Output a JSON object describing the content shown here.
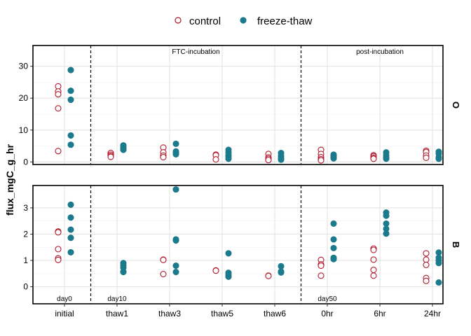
{
  "chart_data": {
    "type": "scatter",
    "ylabel": "flux_mgC_g_hr",
    "xlabel": "",
    "categories": [
      "initial",
      "thaw1",
      "thaw3",
      "thaw5",
      "thaw6",
      "0hr",
      "6hr",
      "24hr"
    ],
    "legend": {
      "position": "top",
      "entries": [
        {
          "name": "control",
          "marker": "open-circle",
          "color": "#B2182B"
        },
        {
          "name": "freeze-thaw",
          "marker": "filled-circle",
          "color": "#1B7A8C"
        }
      ]
    },
    "grid": true,
    "vlines_after": [
      "initial",
      "thaw6"
    ],
    "panels": [
      {
        "strip": "O",
        "ylim": [
          -0.8,
          36.5
        ],
        "yticks": [
          0,
          10,
          20,
          30
        ],
        "annotations": [
          {
            "text": "FTC-incubation",
            "x_between": [
              "thaw3",
              "thaw5"
            ],
            "position": "top"
          },
          {
            "text": "post-incubation",
            "x_between": [
              "0hr",
              "6hr",
              "24hr"
            ],
            "position": "top"
          }
        ],
        "series": [
          {
            "name": "control",
            "points": {
              "initial": [
                23.7,
                22.1,
                21.2,
                16.8,
                3.4
              ],
              "thaw1": [
                2.8,
                2.3,
                1.9,
                1.6
              ],
              "thaw3": [
                4.5,
                3.0,
                2.0,
                1.5
              ],
              "thaw5": [
                2.3,
                2.1,
                0.8
              ],
              "thaw6": [
                2.5,
                1.4,
                1.0,
                0.6
              ],
              "0hr": [
                3.8,
                2.5,
                1.5,
                0.9,
                0.5
              ],
              "6hr": [
                2.1,
                1.8,
                1.3,
                1.0
              ],
              "24hr": [
                3.5,
                3.1,
                2.0,
                1.3
              ]
            }
          },
          {
            "name": "freeze-thaw",
            "points": {
              "initial": [
                28.8,
                22.3,
                19.5,
                8.3,
                5.4
              ],
              "thaw1": [
                5.2,
                4.6,
                4.0,
                3.8
              ],
              "thaw3": [
                5.7,
                3.3,
                2.8,
                2.4
              ],
              "thaw5": [
                3.8,
                3.0,
                2.2,
                1.6,
                1.0
              ],
              "thaw6": [
                2.8,
                1.9,
                1.2,
                0.7
              ],
              "0hr": [
                2.3,
                1.8,
                1.4,
                1.1
              ],
              "6hr": [
                3.0,
                2.1,
                1.4,
                1.0
              ],
              "24hr": [
                3.2,
                2.6,
                1.5,
                1.0
              ]
            }
          }
        ]
      },
      {
        "strip": "B",
        "ylim": [
          -0.65,
          3.85
        ],
        "yticks": [
          0,
          1,
          2,
          3
        ],
        "annotations": [
          {
            "text": "day0",
            "x_between": [
              "initial"
            ],
            "position": "bottom"
          },
          {
            "text": "day10",
            "x_between": [
              "thaw1"
            ],
            "position": "bottom"
          },
          {
            "text": "day50",
            "x_between": [
              "0hr"
            ],
            "position": "bottom"
          }
        ],
        "series": [
          {
            "name": "control",
            "points": {
              "initial": [
                2.1,
                2.07,
                1.43,
                1.08,
                1.02
              ],
              "thaw1": [],
              "thaw3": [
                1.03,
                1.02,
                0.48
              ],
              "thaw5": [
                0.62,
                0.61
              ],
              "thaw6": [
                0.42,
                0.41
              ],
              "0hr": [
                1.02,
                0.85,
                0.8,
                0.42
              ],
              "6hr": [
                1.45,
                1.4,
                1.03,
                0.64,
                0.42
              ],
              "24hr": [
                1.27,
                1.03,
                0.83,
                0.33,
                0.22
              ]
            }
          },
          {
            "name": "freeze-thaw",
            "points": {
              "initial": [
                3.12,
                2.63,
                2.17,
                1.86,
                1.31
              ],
              "thaw1": [
                0.9,
                0.82,
                0.72,
                0.57,
                0.56
              ],
              "thaw3": [
                3.7,
                1.8,
                1.76,
                0.8,
                0.56
              ],
              "thaw5": [
                1.27,
                0.53,
                0.45,
                0.38
              ],
              "thaw6": [
                0.78,
                0.58,
                0.54
              ],
              "0hr": [
                2.4,
                1.8,
                1.47,
                1.1,
                1.05
              ],
              "6hr": [
                2.82,
                2.7,
                2.4,
                2.2,
                2.02
              ],
              "24hr": [
                1.3,
                1.1,
                1.0,
                0.9,
                0.16
              ]
            }
          }
        ]
      }
    ]
  }
}
